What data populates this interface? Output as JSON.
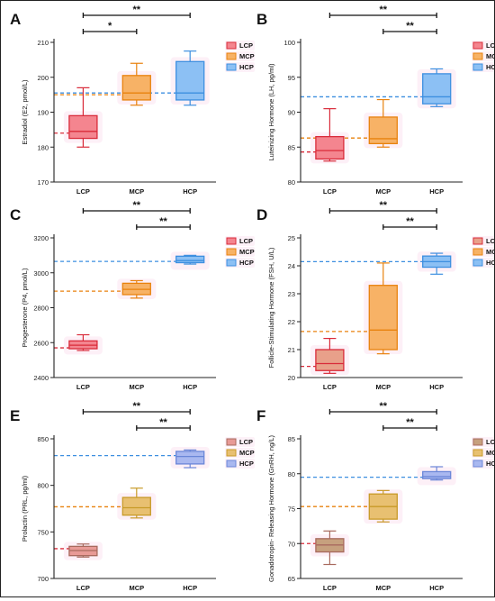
{
  "figure": {
    "categories": [
      "LCP",
      "MCP",
      "HCP"
    ],
    "legend": [
      "LCP",
      "MCP",
      "HCP"
    ],
    "legend_colors": [
      "#f4858f",
      "#f7b266",
      "#7db6f2"
    ]
  },
  "chart_data": [
    {
      "type": "box",
      "panel_label": "A",
      "ylabel": "Estradiol (E2, pmol/L)",
      "categories": [
        "LCP",
        "MCP",
        "HCP"
      ],
      "ylim": [
        170,
        210
      ],
      "yticks": [
        170,
        180,
        190,
        200,
        210
      ],
      "colors": {
        "fill": [
          "#f4858f",
          "#f7b266",
          "#8cc0f4"
        ],
        "stroke": [
          "#d92b3a",
          "#e8820e",
          "#3d8fe0"
        ]
      },
      "boxes": [
        {
          "whisker_low": 180,
          "q1": 182.5,
          "median": 184.5,
          "q3": 189,
          "whisker_high": 197
        },
        {
          "whisker_low": 192,
          "q1": 193.5,
          "median": 195.5,
          "q3": 200.5,
          "whisker_high": 204
        },
        {
          "whisker_low": 192,
          "q1": 193.5,
          "median": 195.5,
          "q3": 204.5,
          "whisker_high": 207.5
        }
      ],
      "reference_lines": [
        {
          "value": 184,
          "color": "#d92b3a"
        },
        {
          "value": 195,
          "color": "#e8820e"
        },
        {
          "value": 195.5,
          "color": "#3d8fe0"
        }
      ],
      "significance": [
        {
          "from": 0,
          "to": 2,
          "label": "**"
        },
        {
          "from": 0,
          "to": 1,
          "label": "*"
        }
      ]
    },
    {
      "type": "box",
      "panel_label": "B",
      "ylabel": "Luteinizing Hormone (LH, pg/ml)",
      "categories": [
        "LCP",
        "MCP",
        "HCP"
      ],
      "ylim": [
        80,
        100
      ],
      "yticks": [
        80,
        85,
        90,
        95,
        100
      ],
      "colors": {
        "fill": [
          "#f4858f",
          "#f7b266",
          "#8cc0f4"
        ],
        "stroke": [
          "#d92b3a",
          "#e8820e",
          "#3d8fe0"
        ]
      },
      "boxes": [
        {
          "whisker_low": 83,
          "q1": 83.3,
          "median": 84.5,
          "q3": 86.5,
          "whisker_high": 90.5
        },
        {
          "whisker_low": 85,
          "q1": 85.5,
          "median": 86.2,
          "q3": 89.3,
          "whisker_high": 91.8
        },
        {
          "whisker_low": 90.8,
          "q1": 91.2,
          "median": 92.2,
          "q3": 95.5,
          "whisker_high": 96.2
        }
      ],
      "reference_lines": [
        {
          "value": 84.3,
          "color": "#d92b3a"
        },
        {
          "value": 86.3,
          "color": "#e8820e"
        },
        {
          "value": 92.2,
          "color": "#3d8fe0"
        }
      ],
      "significance": [
        {
          "from": 0,
          "to": 2,
          "label": "**"
        },
        {
          "from": 1,
          "to": 2,
          "label": "**"
        }
      ]
    },
    {
      "type": "box",
      "panel_label": "C",
      "ylabel": "Progesterone (P4, pmol/L)",
      "categories": [
        "LCP",
        "MCP",
        "HCP"
      ],
      "ylim": [
        2400,
        3200
      ],
      "yticks": [
        2400,
        2600,
        2800,
        3000,
        3200
      ],
      "colors": {
        "fill": [
          "#f4858f",
          "#f7b266",
          "#8cc0f4"
        ],
        "stroke": [
          "#d92b3a",
          "#e8820e",
          "#3d8fe0"
        ]
      },
      "boxes": [
        {
          "whisker_low": 2555,
          "q1": 2565,
          "median": 2585,
          "q3": 2610,
          "whisker_high": 2645
        },
        {
          "whisker_low": 2855,
          "q1": 2875,
          "median": 2905,
          "q3": 2940,
          "whisker_high": 2955
        },
        {
          "whisker_low": 3050,
          "q1": 3058,
          "median": 3070,
          "q3": 3095,
          "whisker_high": 3100
        }
      ],
      "reference_lines": [
        {
          "value": 2570,
          "color": "#d92b3a"
        },
        {
          "value": 2895,
          "color": "#e8820e"
        },
        {
          "value": 3065,
          "color": "#3d8fe0"
        }
      ],
      "significance": [
        {
          "from": 0,
          "to": 2,
          "label": "**"
        },
        {
          "from": 1,
          "to": 2,
          "label": "**"
        }
      ]
    },
    {
      "type": "box",
      "panel_label": "D",
      "ylabel": "Follicle-Stimulating Hormone (FSH, U/L)",
      "categories": [
        "LCP",
        "MCP",
        "HCP"
      ],
      "ylim": [
        20,
        25
      ],
      "yticks": [
        20,
        21,
        22,
        23,
        24,
        25
      ],
      "colors": {
        "fill": [
          "#e8a08a",
          "#f7b266",
          "#8cc0f4"
        ],
        "stroke": [
          "#d92b3a",
          "#e8820e",
          "#3d8fe0"
        ]
      },
      "boxes": [
        {
          "whisker_low": 20.15,
          "q1": 20.25,
          "median": 20.5,
          "q3": 21.0,
          "whisker_high": 21.4
        },
        {
          "whisker_low": 20.85,
          "q1": 21.0,
          "median": 21.7,
          "q3": 23.3,
          "whisker_high": 24.1
        },
        {
          "whisker_low": 23.7,
          "q1": 23.95,
          "median": 24.15,
          "q3": 24.35,
          "whisker_high": 24.45
        }
      ],
      "reference_lines": [
        {
          "value": 20.4,
          "color": "#d92b3a"
        },
        {
          "value": 21.65,
          "color": "#e8820e"
        },
        {
          "value": 24.15,
          "color": "#3d8fe0"
        }
      ],
      "significance": [
        {
          "from": 0,
          "to": 2,
          "label": "**"
        },
        {
          "from": 1,
          "to": 2,
          "label": "**"
        }
      ]
    },
    {
      "type": "box",
      "panel_label": "E",
      "ylabel": "Prolactin (PRL, pg/ml)",
      "categories": [
        "LCP",
        "MCP",
        "HCP"
      ],
      "ylim": [
        700,
        850
      ],
      "yticks": [
        700,
        750,
        800,
        850
      ],
      "colors": {
        "fill": [
          "#e89a96",
          "#e8c071",
          "#a9b8f0"
        ],
        "stroke": [
          "#a86a5e",
          "#c89a28",
          "#6a86d8"
        ]
      },
      "boxes": [
        {
          "whisker_low": 723,
          "q1": 724.5,
          "median": 730,
          "q3": 734.5,
          "whisker_high": 737
        },
        {
          "whisker_low": 765,
          "q1": 768,
          "median": 776,
          "q3": 787,
          "whisker_high": 797
        },
        {
          "whisker_low": 819,
          "q1": 823,
          "median": 831,
          "q3": 836.5,
          "whisker_high": 838
        }
      ],
      "reference_lines": [
        {
          "value": 732,
          "color": "#d92b3a"
        },
        {
          "value": 777,
          "color": "#e8820e"
        },
        {
          "value": 832,
          "color": "#3d8fe0"
        }
      ],
      "significance": [
        {
          "from": 0,
          "to": 2,
          "label": "**"
        },
        {
          "from": 1,
          "to": 2,
          "label": "**"
        }
      ]
    },
    {
      "type": "box",
      "panel_label": "F",
      "ylabel": "Gonadotropin- Releasing Hormone (GnRH, ng/L)",
      "categories": [
        "LCP",
        "MCP",
        "HCP"
      ],
      "ylim": [
        65,
        85
      ],
      "yticks": [
        65,
        70,
        75,
        80,
        85
      ],
      "colors": {
        "fill": [
          "#c6a07e",
          "#e8c071",
          "#a9b8f0"
        ],
        "stroke": [
          "#a86a5e",
          "#c89a28",
          "#6a86d8"
        ]
      },
      "boxes": [
        {
          "whisker_low": 67,
          "q1": 68.8,
          "median": 69.8,
          "q3": 70.7,
          "whisker_high": 71.8
        },
        {
          "whisker_low": 73.1,
          "q1": 73.5,
          "median": 75.3,
          "q3": 77.1,
          "whisker_high": 77.6
        },
        {
          "whisker_low": 79.1,
          "q1": 79.3,
          "median": 79.6,
          "q3": 80.3,
          "whisker_high": 81
        }
      ],
      "reference_lines": [
        {
          "value": 70,
          "color": "#d92b3a"
        },
        {
          "value": 75.3,
          "color": "#e8820e"
        },
        {
          "value": 79.5,
          "color": "#3d8fe0"
        }
      ],
      "significance": [
        {
          "from": 0,
          "to": 2,
          "label": "**"
        },
        {
          "from": 1,
          "to": 2,
          "label": "**"
        }
      ]
    }
  ]
}
